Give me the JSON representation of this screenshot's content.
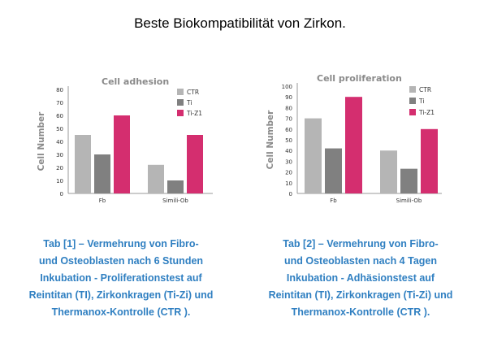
{
  "page": {
    "title": "Beste Biokompatibilität von Zirkon."
  },
  "colors": {
    "CTR": "#b5b5b5",
    "Ti": "#808080",
    "Ti-Zi": "#d42e6f",
    "caption": "#2f7fc1",
    "axis_label": "#8a8a8a"
  },
  "chart_data": [
    {
      "type": "bar",
      "title": "Cell adhesion",
      "xlabel": "",
      "ylabel": "Cell Number",
      "categories": [
        "Fb",
        "Simili-Ob"
      ],
      "series": [
        {
          "name": "CTR",
          "values": [
            45,
            22
          ]
        },
        {
          "name": "Ti",
          "values": [
            30,
            10
          ]
        },
        {
          "name": "Ti-Z1",
          "values": [
            60,
            45
          ]
        }
      ],
      "ylim": [
        0,
        80
      ],
      "yticks": [
        0,
        10,
        20,
        30,
        40,
        50,
        60,
        70,
        80
      ],
      "legend": "top-right",
      "grid": false
    },
    {
      "type": "bar",
      "title": "Cell proliferation",
      "xlabel": "",
      "ylabel": "Cell Number",
      "categories": [
        "Fb",
        "Simili-Ob"
      ],
      "series": [
        {
          "name": "CTR",
          "values": [
            70,
            40
          ]
        },
        {
          "name": "Ti",
          "values": [
            42,
            23
          ]
        },
        {
          "name": "Ti-Z1",
          "values": [
            90,
            60
          ]
        }
      ],
      "ylim": [
        0,
        100
      ],
      "yticks": [
        0,
        10,
        20,
        30,
        40,
        50,
        60,
        70,
        80,
        90,
        100
      ],
      "legend": "top-right",
      "grid": false
    }
  ],
  "captions": [
    {
      "lines": [
        "Tab [1] – Vermehrung von Fibro-",
        "und Osteoblasten nach 6 Stunden",
        "Inkubation - Proliferationstest auf",
        "Reintitan (TI), Zirkonkragen (Ti-Zi) und",
        "Thermanox-Kontrolle (CTR )."
      ]
    },
    {
      "lines": [
        "Tab [2] – Vermehrung von Fibro-",
        "und Osteoblasten nach 4 Tagen",
        "Inkubation - Adhäsionstest auf",
        "Reintitan (TI), Zirkonkragen (Ti-Zi) und",
        "Thermanox-Kontrolle (CTR )."
      ]
    }
  ]
}
